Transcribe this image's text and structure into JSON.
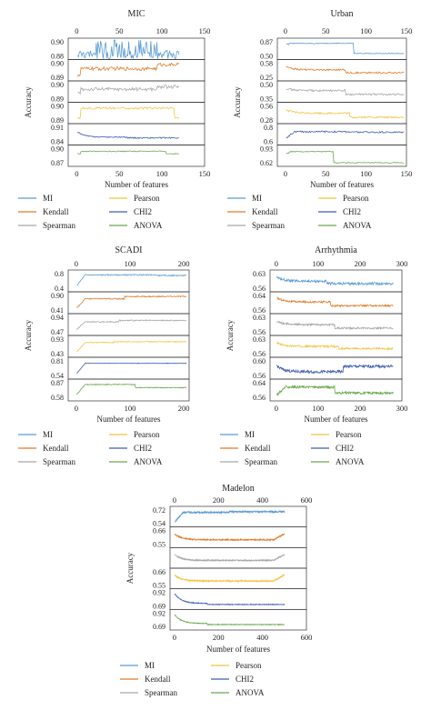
{
  "colors": {
    "MI": "#5b9bd5",
    "Pearson": "#f5c242",
    "Kendall": "#e07b2a",
    "CHI2": "#3f5fae",
    "Spearman": "#a8a8a8",
    "ANOVA": "#6aa84f"
  },
  "legend_order": [
    "MI",
    "Pearson",
    "Kendall",
    "CHI2",
    "Spearman",
    "ANOVA"
  ],
  "y_label": "Accuracy",
  "x_label": "Number of features",
  "chart_data": [
    {
      "type": "line",
      "title": "MIC",
      "xlim": [
        -10,
        150
      ],
      "x_ticks": [
        "0",
        "50",
        "100",
        "150"
      ],
      "n_features": 120,
      "series": [
        {
          "name": "MI",
          "key": "MI",
          "ylim": [
            0.882,
            0.905
          ],
          "yticks": [
            "0.90",
            "0.88"
          ],
          "start": 0.885,
          "plateau": 0.893,
          "late": 0.893,
          "break": 120,
          "noise": 0.006,
          "mode": "spike"
        },
        {
          "name": "Kendall",
          "key": "Kendall",
          "ylim": [
            0.885,
            0.905
          ],
          "yticks": [
            "0.90",
            "0.89"
          ],
          "start": 0.889,
          "plateau": 0.897,
          "late": 0.902,
          "break": 95,
          "noise": 0.002,
          "mode": "step"
        },
        {
          "name": "Spearman",
          "key": "Spearman",
          "ylim": [
            0.885,
            0.905
          ],
          "yticks": [
            "0.90",
            "0.89"
          ],
          "start": 0.893,
          "plateau": 0.898,
          "late": 0.901,
          "break": 95,
          "noise": 0.002,
          "mode": "step"
        },
        {
          "name": "Pearson",
          "key": "Pearson",
          "ylim": [
            0.885,
            0.905
          ],
          "yticks": [
            "0.90",
            "0.89"
          ],
          "start": 0.888,
          "plateau": 0.901,
          "late": 0.889,
          "break": 115,
          "noise": 0.001,
          "mode": "step"
        },
        {
          "name": "CHI2",
          "key": "CHI2",
          "ylim": [
            0.835,
            0.918
          ],
          "yticks": [
            "0.91",
            "0.84"
          ],
          "start": 0.895,
          "plateau": 0.862,
          "late": 0.858,
          "break": 60,
          "noise": 0.003,
          "mode": "decay"
        },
        {
          "name": "ANOVA",
          "key": "ANOVA",
          "ylim": [
            0.865,
            0.905
          ],
          "yticks": [
            "0.90",
            "0.87"
          ],
          "start": 0.89,
          "plateau": 0.896,
          "late": 0.89,
          "break": 105,
          "noise": 0.001,
          "mode": "step"
        }
      ]
    },
    {
      "type": "line",
      "title": "Urban",
      "xlim": [
        -10,
        150
      ],
      "x_ticks": [
        "0",
        "50",
        "100",
        "150"
      ],
      "n_features": 147,
      "series": [
        {
          "name": "MI",
          "key": "MI",
          "ylim": [
            0.5,
            0.88
          ],
          "yticks": [
            "0.87",
            "0.50"
          ],
          "start": 0.8,
          "plateau": 0.82,
          "late": 0.58,
          "break": 85,
          "noise": 0.01,
          "mode": "step"
        },
        {
          "name": "Kendall",
          "key": "Kendall",
          "ylim": [
            0.22,
            0.6
          ],
          "yticks": [
            "0.58",
            "0.25"
          ],
          "start": 0.5,
          "plateau": 0.42,
          "late": 0.35,
          "break": 75,
          "noise": 0.02,
          "mode": "decay"
        },
        {
          "name": "Spearman",
          "key": "Spearman",
          "ylim": [
            0.3,
            0.55
          ],
          "yticks": [
            "0.50",
            "0.35"
          ],
          "start": 0.48,
          "plateau": 0.44,
          "late": 0.38,
          "break": 75,
          "noise": 0.015,
          "mode": "decay"
        },
        {
          "name": "Pearson",
          "key": "Pearson",
          "ylim": [
            0.25,
            0.6
          ],
          "yticks": [
            "0.56",
            "0.28"
          ],
          "start": 0.5,
          "plateau": 0.42,
          "late": 0.33,
          "break": 80,
          "noise": 0.02,
          "mode": "decay"
        },
        {
          "name": "CHI2",
          "key": "CHI2",
          "ylim": [
            0.55,
            0.85
          ],
          "yticks": [
            "0.8",
            "0.6"
          ],
          "start": 0.62,
          "plateau": 0.75,
          "late": 0.74,
          "break": 80,
          "noise": 0.015,
          "mode": "rise"
        },
        {
          "name": "ANOVA",
          "key": "ANOVA",
          "ylim": [
            0.58,
            0.95
          ],
          "yticks": [
            "0.93",
            "0.62"
          ],
          "start": 0.82,
          "plateau": 0.86,
          "late": 0.6,
          "break": 60,
          "noise": 0.01,
          "mode": "step"
        }
      ]
    },
    {
      "type": "line",
      "title": "SCADI",
      "xlim": [
        -15,
        210
      ],
      "x_ticks": [
        "0",
        "100",
        "200"
      ],
      "n_features": 205,
      "series": [
        {
          "name": "MI",
          "key": "MI",
          "ylim": [
            0.3,
            0.9
          ],
          "yticks": [
            "0.8",
            "0.4"
          ],
          "start": 0.4,
          "plateau": 0.82,
          "late": 0.8,
          "break": 150,
          "noise": 0.02,
          "mode": "rise"
        },
        {
          "name": "Kendall",
          "key": "Kendall",
          "ylim": [
            0.37,
            0.95
          ],
          "yticks": [
            "0.90",
            "0.41"
          ],
          "start": 0.45,
          "plateau": 0.8,
          "late": 0.88,
          "break": 90,
          "noise": 0.02,
          "mode": "rise"
        },
        {
          "name": "Spearman",
          "key": "Spearman",
          "ylim": [
            0.4,
            1.0
          ],
          "yticks": [
            "0.94",
            "0.47"
          ],
          "start": 0.5,
          "plateau": 0.8,
          "late": 0.85,
          "break": 80,
          "noise": 0.02,
          "mode": "rise"
        },
        {
          "name": "Pearson",
          "key": "Pearson",
          "ylim": [
            0.38,
            0.98
          ],
          "yticks": [
            "0.93",
            "0.43"
          ],
          "start": 0.45,
          "plateau": 0.82,
          "late": 0.85,
          "break": 70,
          "noise": 0.015,
          "mode": "rise"
        },
        {
          "name": "CHI2",
          "key": "CHI2",
          "ylim": [
            0.5,
            0.85
          ],
          "yticks": [
            "0.81",
            "0.54"
          ],
          "start": 0.55,
          "plateau": 0.78,
          "late": 0.78,
          "break": 50,
          "noise": 0.005,
          "mode": "rise"
        },
        {
          "name": "ANOVA",
          "key": "ANOVA",
          "ylim": [
            0.53,
            0.9
          ],
          "yticks": [
            "0.87",
            "0.58"
          ],
          "start": 0.6,
          "plateau": 0.84,
          "late": 0.77,
          "break": 110,
          "noise": 0.01,
          "mode": "rise"
        }
      ]
    },
    {
      "type": "line",
      "title": "Arrhythmia",
      "xlim": [
        -15,
        300
      ],
      "x_ticks": [
        "0",
        "100",
        "200",
        "300"
      ],
      "n_features": 279,
      "series": [
        {
          "name": "MI",
          "key": "MI",
          "ylim": [
            0.54,
            0.645
          ],
          "yticks": [
            "0.63",
            "0.56"
          ],
          "start": 0.62,
          "plateau": 0.59,
          "late": 0.575,
          "break": 120,
          "noise": 0.008,
          "mode": "decay"
        },
        {
          "name": "Kendall",
          "key": "Kendall",
          "ylim": [
            0.54,
            0.65
          ],
          "yticks": [
            "0.64",
            "0.56"
          ],
          "start": 0.63,
          "plateau": 0.6,
          "late": 0.575,
          "break": 130,
          "noise": 0.006,
          "mode": "decay"
        },
        {
          "name": "Spearman",
          "key": "Spearman",
          "ylim": [
            0.55,
            0.65
          ],
          "yticks": [
            "0.63",
            "0.56"
          ],
          "start": 0.62,
          "plateau": 0.6,
          "late": 0.578,
          "break": 140,
          "noise": 0.006,
          "mode": "decay"
        },
        {
          "name": "Pearson",
          "key": "Pearson",
          "ylim": [
            0.54,
            0.65
          ],
          "yticks": [
            "0.63",
            "0.56"
          ],
          "start": 0.62,
          "plateau": 0.595,
          "late": 0.58,
          "break": 150,
          "noise": 0.006,
          "mode": "decay"
        },
        {
          "name": "CHI2",
          "key": "CHI2",
          "ylim": [
            0.54,
            0.63
          ],
          "yticks": [
            "0.60",
            "0.56"
          ],
          "start": 0.6,
          "plateau": 0.565,
          "late": 0.595,
          "break": 160,
          "noise": 0.008,
          "mode": "decay"
        },
        {
          "name": "ANOVA",
          "key": "ANOVA",
          "ylim": [
            0.54,
            0.65
          ],
          "yticks": [
            "0.64",
            "0.56"
          ],
          "start": 0.56,
          "plateau": 0.615,
          "late": 0.575,
          "break": 140,
          "noise": 0.008,
          "mode": "rise"
        }
      ]
    },
    {
      "type": "line",
      "title": "Madelon",
      "xlim": [
        -20,
        600
      ],
      "x_ticks": [
        "0",
        "200",
        "400",
        "600"
      ],
      "n_features": 500,
      "series": [
        {
          "name": "MI",
          "key": "MI",
          "ylim": [
            0.52,
            0.75
          ],
          "yticks": [
            "0.72",
            "0.54"
          ],
          "start": 0.55,
          "plateau": 0.7,
          "late": 0.71,
          "break": 250,
          "noise": 0.012,
          "mode": "rise"
        },
        {
          "name": "Kendall",
          "key": "Kendall",
          "ylim": [
            0.53,
            0.68
          ],
          "yticks": [
            "0.66",
            "0.55"
          ],
          "start": 0.64,
          "plateau": 0.58,
          "late": 0.58,
          "break": 450,
          "noise": 0.006,
          "mode": "decayspike"
        },
        {
          "name": "Spearman",
          "key": "Spearman",
          "ylim": [
            0.53,
            0.68
          ],
          "yticks": [
            "",
            ""
          ],
          "start": 0.64,
          "plateau": 0.58,
          "late": 0.58,
          "break": 450,
          "noise": 0.006,
          "mode": "decayspike"
        },
        {
          "name": "Pearson",
          "key": "Pearson",
          "ylim": [
            0.53,
            0.68
          ],
          "yticks": [
            "0.66",
            "0.55"
          ],
          "start": 0.64,
          "plateau": 0.58,
          "late": 0.58,
          "break": 450,
          "noise": 0.006,
          "mode": "decayspike"
        },
        {
          "name": "CHI2",
          "key": "CHI2",
          "ylim": [
            0.66,
            0.94
          ],
          "yticks": [
            "0.92",
            "0.69"
          ],
          "start": 0.91,
          "plateau": 0.72,
          "late": 0.7,
          "break": 150,
          "noise": 0.006,
          "mode": "decay"
        },
        {
          "name": "ANOVA",
          "key": "ANOVA",
          "ylim": [
            0.66,
            0.94
          ],
          "yticks": [
            "0.92",
            "0.69"
          ],
          "start": 0.9,
          "plateau": 0.73,
          "late": 0.71,
          "break": 150,
          "noise": 0.005,
          "mode": "decay"
        }
      ]
    }
  ]
}
